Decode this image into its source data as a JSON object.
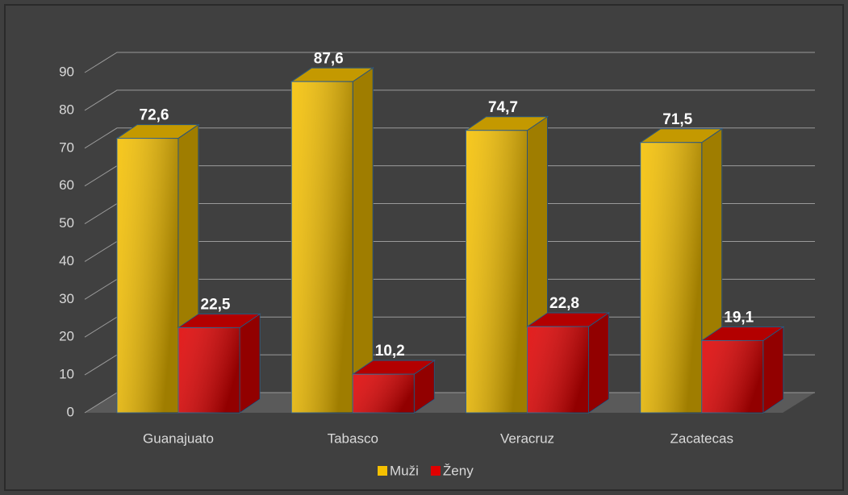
{
  "chart_data": {
    "type": "bar3d",
    "categories": [
      "Guanajuato",
      "Tabasco",
      "Veracruz",
      "Zacatecas"
    ],
    "series": [
      {
        "name": "Muži",
        "color": "#f5c000",
        "values": [
          72.6,
          87.6,
          74.7,
          71.5
        ],
        "value_labels": [
          "72,6",
          "87,6",
          "74,7",
          "71,5"
        ]
      },
      {
        "name": "Ženy",
        "color": "#e00000",
        "values": [
          22.5,
          10.2,
          22.8,
          19.1
        ],
        "value_labels": [
          "22,5",
          "10,2",
          "22,8",
          "19,1"
        ]
      }
    ],
    "ylim": [
      0,
      90
    ],
    "yticks": [
      0,
      10,
      20,
      30,
      40,
      50,
      60,
      70,
      80,
      90
    ],
    "grid": true,
    "legend": "bottom"
  }
}
